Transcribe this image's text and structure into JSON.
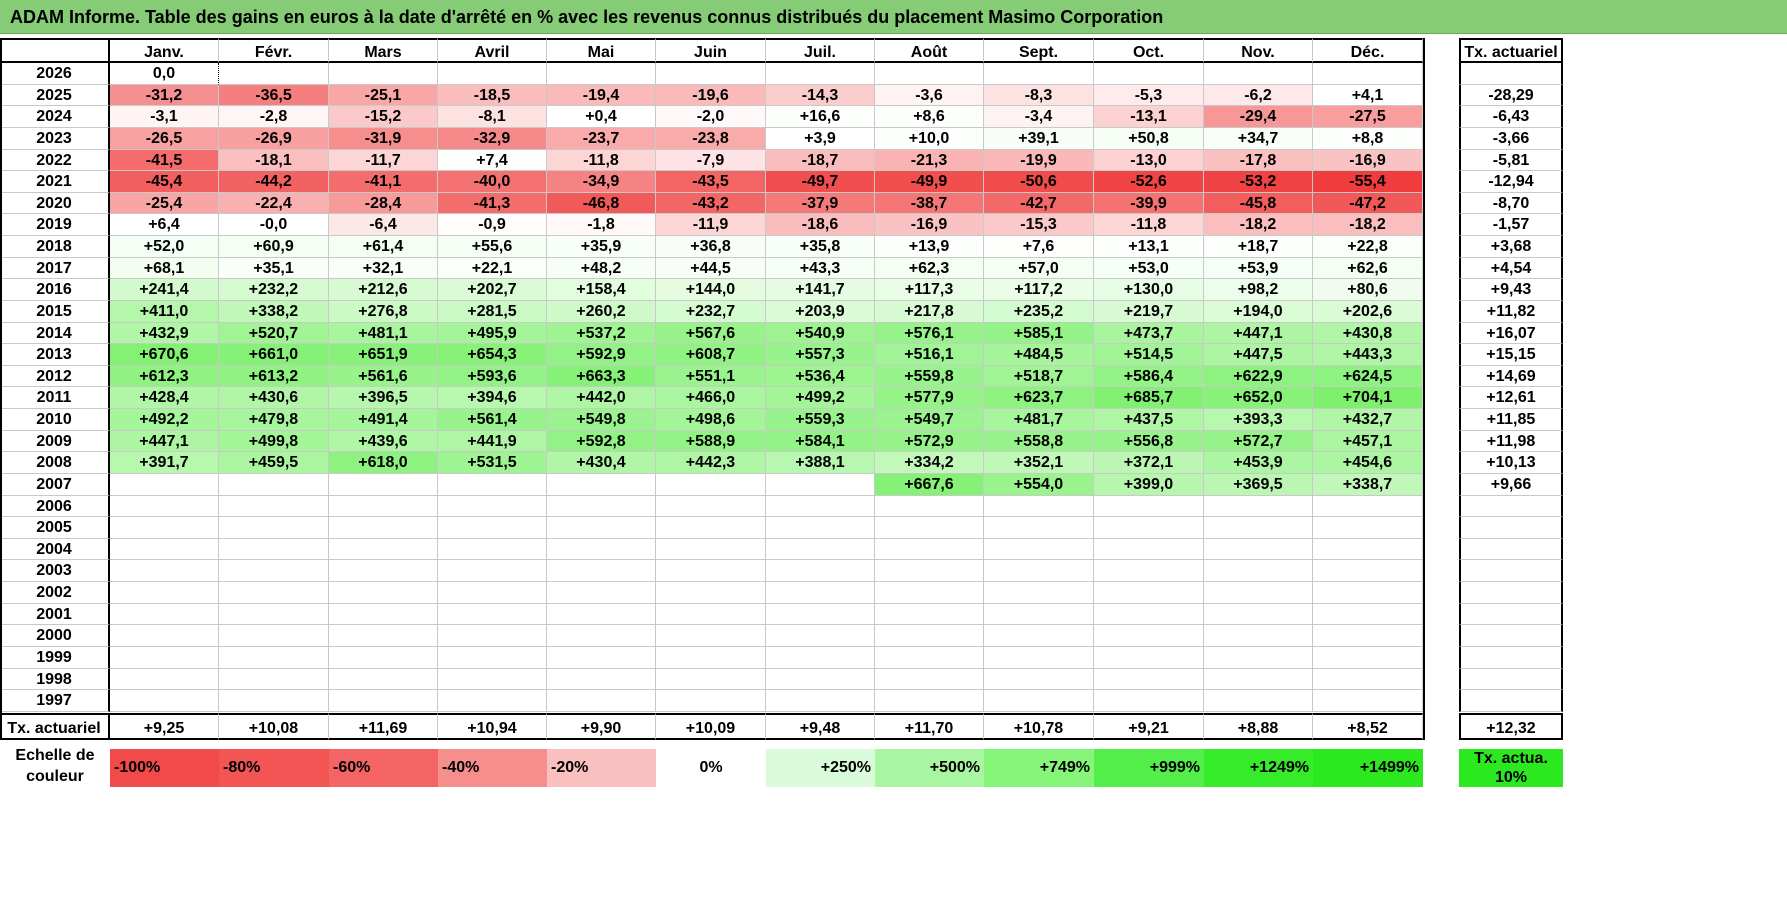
{
  "title": "ADAM Informe. Table des gains en euros à la date d'arrêté en % avec les revenus connus distribués du placement Masimo Corporation",
  "months": [
    "Janv.",
    "Févr.",
    "Mars",
    "Avril",
    "Mai",
    "Juin",
    "Juil.",
    "Août",
    "Sept.",
    "Oct.",
    "Nov.",
    "Déc."
  ],
  "actuarial_header": "Tx. actuariel",
  "rows": [
    {
      "year": "2026",
      "values": [
        "0,0",
        "",
        "",
        "",
        "",
        "",
        "",
        "",
        "",
        "",
        "",
        ""
      ],
      "actuarial": ""
    },
    {
      "year": "2025",
      "values": [
        "-31,2",
        "-36,5",
        "-25,1",
        "-18,5",
        "-19,4",
        "-19,6",
        "-14,3",
        "-3,6",
        "-8,3",
        "-5,3",
        "-6,2",
        "+4,1"
      ],
      "actuarial": "-28,29"
    },
    {
      "year": "2024",
      "values": [
        "-3,1",
        "-2,8",
        "-15,2",
        "-8,1",
        "+0,4",
        "-2,0",
        "+16,6",
        "+8,6",
        "-3,4",
        "-13,1",
        "-29,4",
        "-27,5"
      ],
      "actuarial": "-6,43"
    },
    {
      "year": "2023",
      "values": [
        "-26,5",
        "-26,9",
        "-31,9",
        "-32,9",
        "-23,7",
        "-23,8",
        "+3,9",
        "+10,0",
        "+39,1",
        "+50,8",
        "+34,7",
        "+8,8"
      ],
      "actuarial": "-3,66"
    },
    {
      "year": "2022",
      "values": [
        "-41,5",
        "-18,1",
        "-11,7",
        "+7,4",
        "-11,8",
        "-7,9",
        "-18,7",
        "-21,3",
        "-19,9",
        "-13,0",
        "-17,8",
        "-16,9"
      ],
      "actuarial": "-5,81"
    },
    {
      "year": "2021",
      "values": [
        "-45,4",
        "-44,2",
        "-41,1",
        "-40,0",
        "-34,9",
        "-43,5",
        "-49,7",
        "-49,9",
        "-50,6",
        "-52,6",
        "-53,2",
        "-55,4"
      ],
      "actuarial": "-12,94"
    },
    {
      "year": "2020",
      "values": [
        "-25,4",
        "-22,4",
        "-28,4",
        "-41,3",
        "-46,8",
        "-43,2",
        "-37,9",
        "-38,7",
        "-42,7",
        "-39,9",
        "-45,8",
        "-47,2"
      ],
      "actuarial": "-8,70"
    },
    {
      "year": "2019",
      "values": [
        "+6,4",
        "-0,0",
        "-6,4",
        "-0,9",
        "-1,8",
        "-11,9",
        "-18,6",
        "-16,9",
        "-15,3",
        "-11,8",
        "-18,2",
        "-18,2"
      ],
      "actuarial": "-1,57"
    },
    {
      "year": "2018",
      "values": [
        "+52,0",
        "+60,9",
        "+61,4",
        "+55,6",
        "+35,9",
        "+36,8",
        "+35,8",
        "+13,9",
        "+7,6",
        "+13,1",
        "+18,7",
        "+22,8"
      ],
      "actuarial": "+3,68"
    },
    {
      "year": "2017",
      "values": [
        "+68,1",
        "+35,1",
        "+32,1",
        "+22,1",
        "+48,2",
        "+44,5",
        "+43,3",
        "+62,3",
        "+57,0",
        "+53,0",
        "+53,9",
        "+62,6"
      ],
      "actuarial": "+4,54"
    },
    {
      "year": "2016",
      "values": [
        "+241,4",
        "+232,2",
        "+212,6",
        "+202,7",
        "+158,4",
        "+144,0",
        "+141,7",
        "+117,3",
        "+117,2",
        "+130,0",
        "+98,2",
        "+80,6"
      ],
      "actuarial": "+9,43"
    },
    {
      "year": "2015",
      "values": [
        "+411,0",
        "+338,2",
        "+276,8",
        "+281,5",
        "+260,2",
        "+232,7",
        "+203,9",
        "+217,8",
        "+235,2",
        "+219,7",
        "+194,0",
        "+202,6"
      ],
      "actuarial": "+11,82"
    },
    {
      "year": "2014",
      "values": [
        "+432,9",
        "+520,7",
        "+481,1",
        "+495,9",
        "+537,2",
        "+567,6",
        "+540,9",
        "+576,1",
        "+585,1",
        "+473,7",
        "+447,1",
        "+430,8"
      ],
      "actuarial": "+16,07"
    },
    {
      "year": "2013",
      "values": [
        "+670,6",
        "+661,0",
        "+651,9",
        "+654,3",
        "+592,9",
        "+608,7",
        "+557,3",
        "+516,1",
        "+484,5",
        "+514,5",
        "+447,5",
        "+443,3"
      ],
      "actuarial": "+15,15"
    },
    {
      "year": "2012",
      "values": [
        "+612,3",
        "+613,2",
        "+561,6",
        "+593,6",
        "+663,3",
        "+551,1",
        "+536,4",
        "+559,8",
        "+518,7",
        "+586,4",
        "+622,9",
        "+624,5"
      ],
      "actuarial": "+14,69"
    },
    {
      "year": "2011",
      "values": [
        "+428,4",
        "+430,6",
        "+396,5",
        "+394,6",
        "+442,0",
        "+466,0",
        "+499,2",
        "+577,9",
        "+623,7",
        "+685,7",
        "+652,0",
        "+704,1"
      ],
      "actuarial": "+12,61"
    },
    {
      "year": "2010",
      "values": [
        "+492,2",
        "+479,8",
        "+491,4",
        "+561,4",
        "+549,8",
        "+498,6",
        "+559,3",
        "+549,7",
        "+481,7",
        "+437,5",
        "+393,3",
        "+432,7"
      ],
      "actuarial": "+11,85"
    },
    {
      "year": "2009",
      "values": [
        "+447,1",
        "+499,8",
        "+439,6",
        "+441,9",
        "+592,8",
        "+588,9",
        "+584,1",
        "+572,9",
        "+558,8",
        "+556,8",
        "+572,7",
        "+457,1"
      ],
      "actuarial": "+11,98"
    },
    {
      "year": "2008",
      "values": [
        "+391,7",
        "+459,5",
        "+618,0",
        "+531,5",
        "+430,4",
        "+442,3",
        "+388,1",
        "+334,2",
        "+352,1",
        "+372,1",
        "+453,9",
        "+454,6"
      ],
      "actuarial": "+10,13"
    },
    {
      "year": "2007",
      "values": [
        "",
        "",
        "",
        "",
        "",
        "",
        "",
        "+667,6",
        "+554,0",
        "+399,0",
        "+369,5",
        "+338,7"
      ],
      "actuarial": "+9,66"
    },
    {
      "year": "2006",
      "values": [
        "",
        "",
        "",
        "",
        "",
        "",
        "",
        "",
        "",
        "",
        "",
        ""
      ],
      "actuarial": ""
    },
    {
      "year": "2005",
      "values": [
        "",
        "",
        "",
        "",
        "",
        "",
        "",
        "",
        "",
        "",
        "",
        ""
      ],
      "actuarial": ""
    },
    {
      "year": "2004",
      "values": [
        "",
        "",
        "",
        "",
        "",
        "",
        "",
        "",
        "",
        "",
        "",
        ""
      ],
      "actuarial": ""
    },
    {
      "year": "2003",
      "values": [
        "",
        "",
        "",
        "",
        "",
        "",
        "",
        "",
        "",
        "",
        "",
        ""
      ],
      "actuarial": ""
    },
    {
      "year": "2002",
      "values": [
        "",
        "",
        "",
        "",
        "",
        "",
        "",
        "",
        "",
        "",
        "",
        ""
      ],
      "actuarial": ""
    },
    {
      "year": "2001",
      "values": [
        "",
        "",
        "",
        "",
        "",
        "",
        "",
        "",
        "",
        "",
        "",
        ""
      ],
      "actuarial": ""
    },
    {
      "year": "2000",
      "values": [
        "",
        "",
        "",
        "",
        "",
        "",
        "",
        "",
        "",
        "",
        "",
        ""
      ],
      "actuarial": ""
    },
    {
      "year": "1999",
      "values": [
        "",
        "",
        "",
        "",
        "",
        "",
        "",
        "",
        "",
        "",
        "",
        ""
      ],
      "actuarial": ""
    },
    {
      "year": "1998",
      "values": [
        "",
        "",
        "",
        "",
        "",
        "",
        "",
        "",
        "",
        "",
        "",
        ""
      ],
      "actuarial": ""
    },
    {
      "year": "1997",
      "values": [
        "",
        "",
        "",
        "",
        "",
        "",
        "",
        "",
        "",
        "",
        "",
        ""
      ],
      "actuarial": ""
    }
  ],
  "totals": {
    "label": "Tx. actuariel",
    "values": [
      "+9,25",
      "+10,08",
      "+11,69",
      "+10,94",
      "+9,90",
      "+10,09",
      "+9,48",
      "+11,70",
      "+10,78",
      "+9,21",
      "+8,88",
      "+8,52"
    ],
    "overall": "+12,32"
  },
  "legend": {
    "label": "Echelle de couleur",
    "items": [
      {
        "text": "-100%",
        "color": "#f24a4a",
        "align": "left"
      },
      {
        "text": "-80%",
        "color": "#f35454",
        "align": "left"
      },
      {
        "text": "-60%",
        "color": "#f56464",
        "align": "left"
      },
      {
        "text": "-40%",
        "color": "#f78e8e",
        "align": "left"
      },
      {
        "text": "-20%",
        "color": "#fabfbf",
        "align": "left"
      },
      {
        "text": "0%",
        "color": "#ffffff",
        "align": "center"
      },
      {
        "text": "+250%",
        "color": "#d9fbd9",
        "align": "right"
      },
      {
        "text": "+500%",
        "color": "#a8f5a2",
        "align": "right"
      },
      {
        "text": "+749%",
        "color": "#86f57a",
        "align": "right"
      },
      {
        "text": "+999%",
        "color": "#54ee4a",
        "align": "right"
      },
      {
        "text": "+1249%",
        "color": "#36eb2a",
        "align": "right"
      },
      {
        "text": "+1499%",
        "color": "#2ce81f",
        "align": "right"
      }
    ],
    "actuarial_text": "Tx. actua. 10%",
    "actuarial_color": "#2ce81f"
  }
}
